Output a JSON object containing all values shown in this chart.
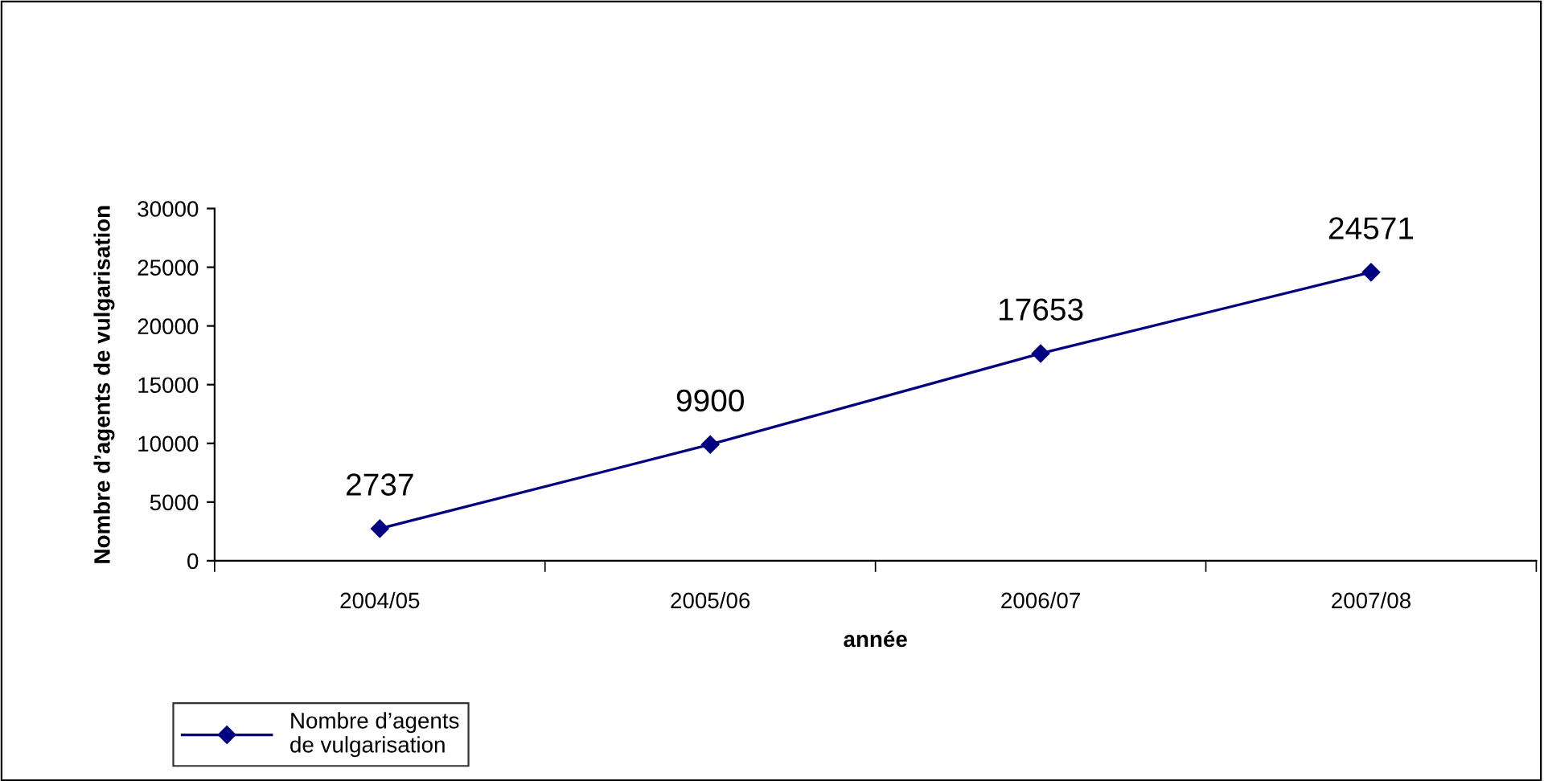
{
  "chart_data": {
    "type": "line",
    "xlabel": "année",
    "ylabel": "Nombre d’agents de vulgarisation",
    "categories": [
      "2004/05",
      "2005/06",
      "2006/07",
      "2007/08"
    ],
    "series": [
      {
        "name": "Nombre d’agents de vulgarisation",
        "color": "#000080",
        "values": [
          2737,
          9900,
          17653,
          24571
        ]
      }
    ],
    "ylim": [
      0,
      30000
    ],
    "yticks": [
      0,
      5000,
      10000,
      15000,
      20000,
      25000,
      30000
    ],
    "marker": "diamond",
    "line_style": "solid",
    "data_labels": true,
    "grid": false,
    "legend": "bottom left"
  }
}
